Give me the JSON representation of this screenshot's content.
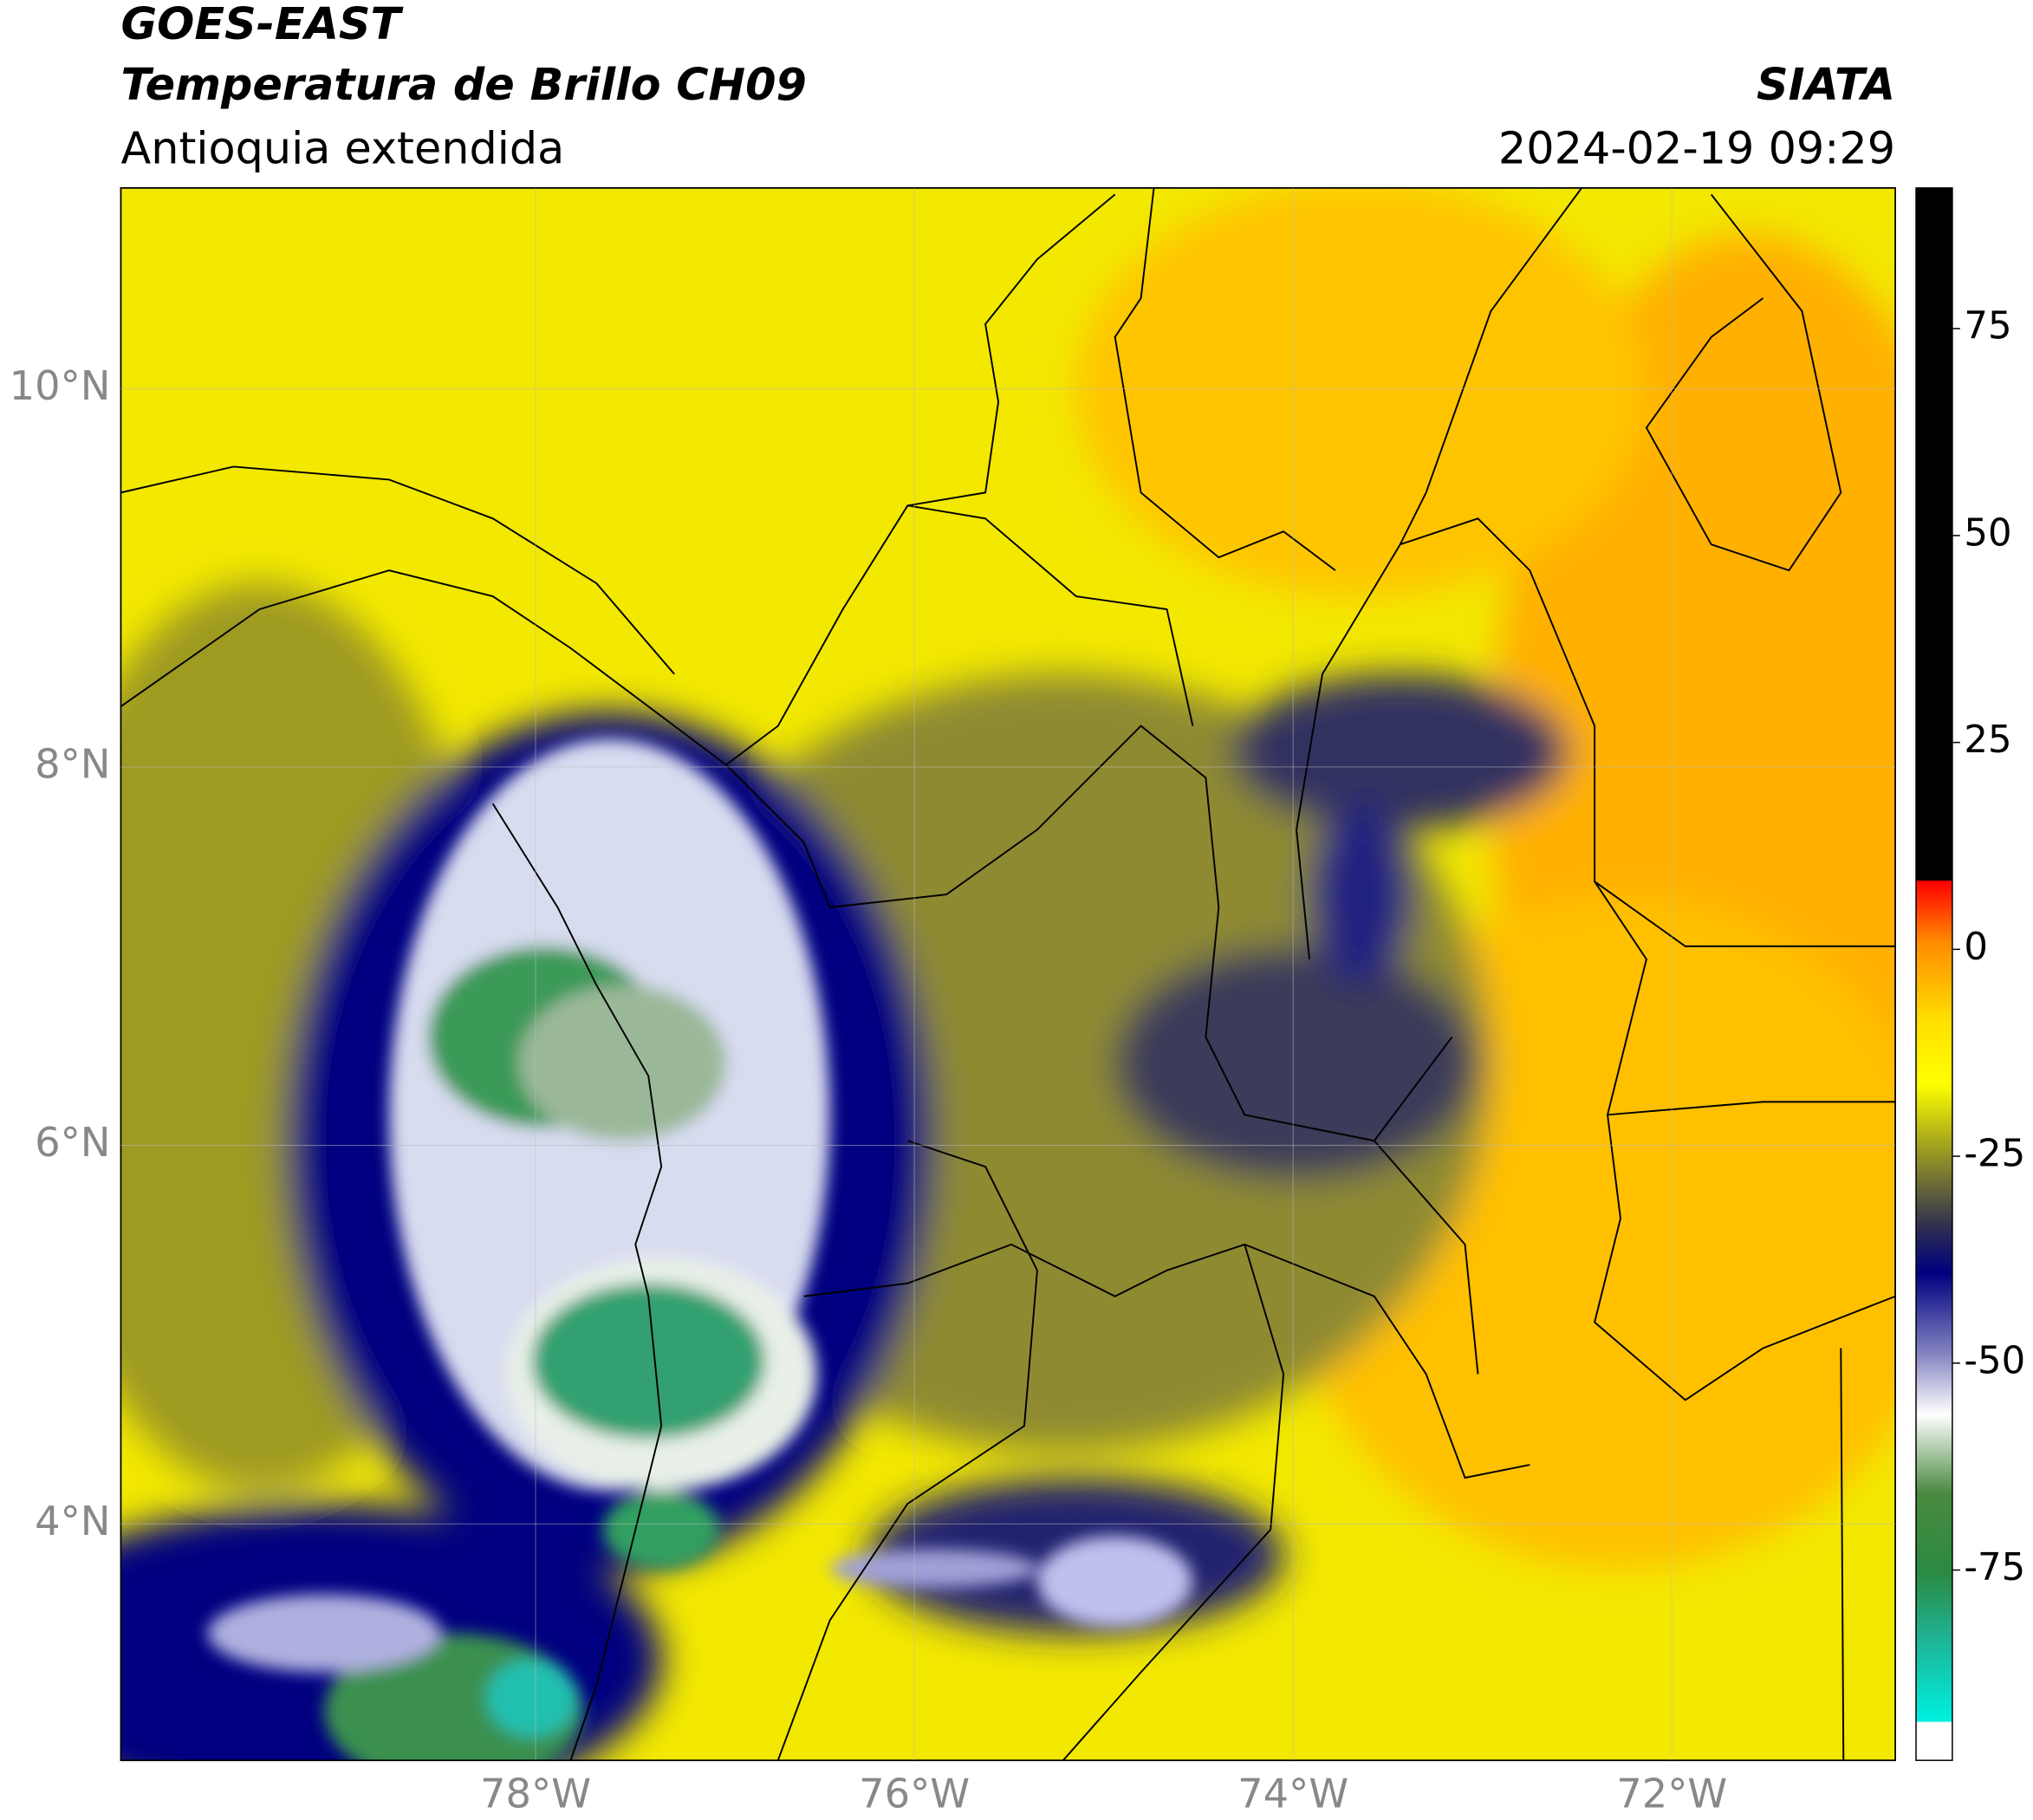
{
  "header": {
    "title": "GOES-EAST",
    "subtitle": "Temperatura de Brillo CH09",
    "region": "Antioquia extendida",
    "agency": "SIATA",
    "datetime": "2024-02-19 09:29"
  },
  "map": {
    "xlim": [
      -80.19,
      -70.82
    ],
    "ylim": [
      2.75,
      11.06
    ],
    "xticks": [
      {
        "value": -78,
        "label": "78°W"
      },
      {
        "value": -76,
        "label": "76°W"
      },
      {
        "value": -74,
        "label": "74°W"
      },
      {
        "value": -72,
        "label": "72°W"
      }
    ],
    "yticks": [
      {
        "value": 10,
        "label": "10°N"
      },
      {
        "value": 8,
        "label": "8°N"
      },
      {
        "value": 6,
        "label": "6°N"
      },
      {
        "value": 4,
        "label": "4°N"
      }
    ]
  },
  "colorbar": {
    "lim": [
      -98,
      92
    ],
    "ticks": [
      75,
      50,
      25,
      0,
      -25,
      -50,
      -75
    ]
  }
}
